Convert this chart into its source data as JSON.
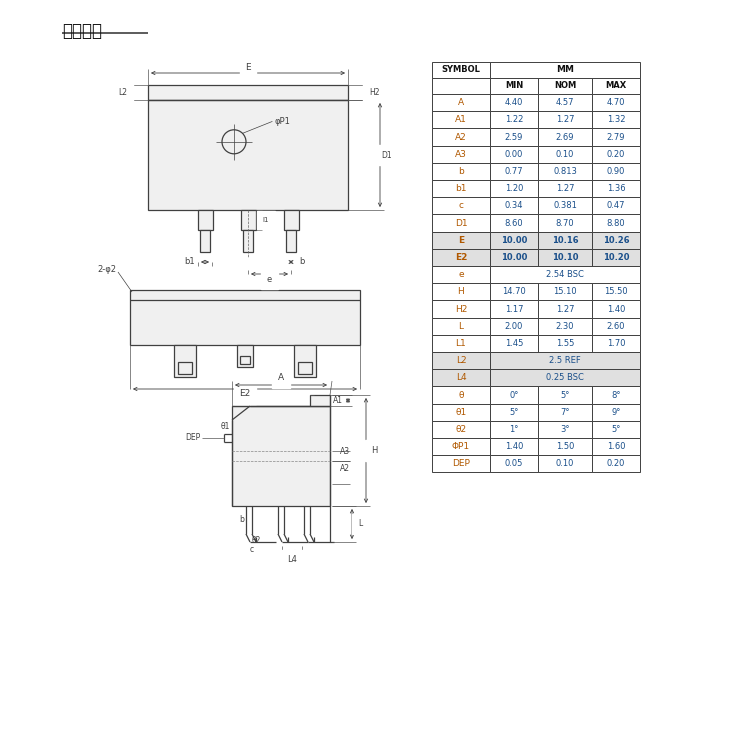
{
  "title": "封装外型",
  "bg_color": "#ffffff",
  "table": {
    "rows": [
      [
        "A",
        "4.40",
        "4.57",
        "4.70"
      ],
      [
        "A1",
        "1.22",
        "1.27",
        "1.32"
      ],
      [
        "A2",
        "2.59",
        "2.69",
        "2.79"
      ],
      [
        "A3",
        "0.00",
        "0.10",
        "0.20"
      ],
      [
        "b",
        "0.77",
        "0.813",
        "0.90"
      ],
      [
        "b1",
        "1.20",
        "1.27",
        "1.36"
      ],
      [
        "c",
        "0.34",
        "0.381",
        "0.47"
      ],
      [
        "D1",
        "8.60",
        "8.70",
        "8.80"
      ],
      [
        "E",
        "10.00",
        "10.16",
        "10.26"
      ],
      [
        "E2",
        "10.00",
        "10.10",
        "10.20"
      ],
      [
        "e",
        "2.54 BSC",
        "",
        ""
      ],
      [
        "H",
        "14.70",
        "15.10",
        "15.50"
      ],
      [
        "H2",
        "1.17",
        "1.27",
        "1.40"
      ],
      [
        "L",
        "2.00",
        "2.30",
        "2.60"
      ],
      [
        "L1",
        "1.45",
        "1.55",
        "1.70"
      ],
      [
        "L2",
        "2.5 REF",
        "",
        ""
      ],
      [
        "L4",
        "0.25 BSC",
        "",
        ""
      ],
      [
        "θ",
        "0°",
        "5°",
        "8°"
      ],
      [
        "θ1",
        "5°",
        "7°",
        "9°"
      ],
      [
        "θ2",
        "1°",
        "3°",
        "5°"
      ],
      [
        "ΦP1",
        "1.40",
        "1.50",
        "1.60"
      ],
      [
        "DEP",
        "0.05",
        "0.10",
        "0.20"
      ]
    ],
    "span_rows": [
      10,
      15,
      16
    ],
    "bold_rows": [
      8,
      9
    ],
    "dark_rows": [
      8,
      9,
      15,
      16
    ]
  },
  "lc": "#404040",
  "sym_color": "#b05800",
  "val_color": "#1a4f8a"
}
